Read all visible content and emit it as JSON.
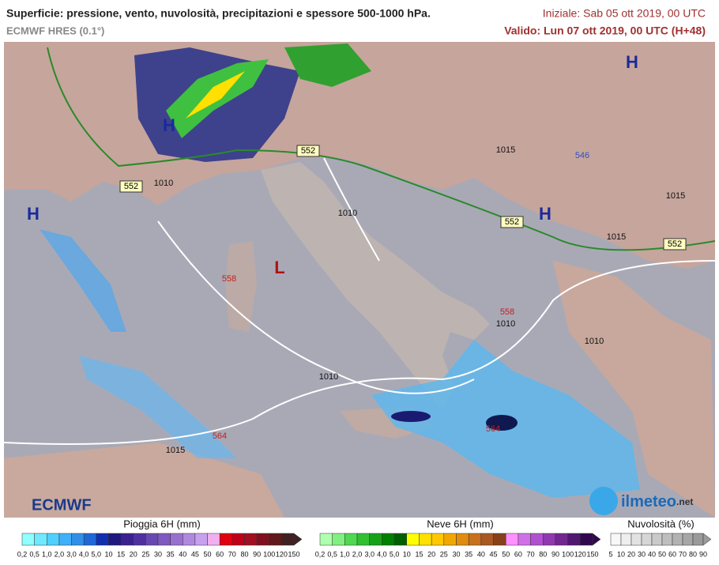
{
  "header": {
    "title": "Superficie: pressione, vento, nuvolosità, precipitazioni e spessore 500-1000 hPa.",
    "model": "ECMWF HRES (0.1°)",
    "init": "Iniziale: Sab 05 ott 2019, 00 UTC",
    "valid": "Valido: Lun 07 ott 2019, 00 UTC (H+48)"
  },
  "map": {
    "labels": [
      "H",
      "H",
      "H",
      "H",
      "L",
      "552",
      "552",
      "552",
      "552",
      "1010",
      "1010",
      "1010",
      "1010",
      "1010",
      "1015",
      "1015",
      "1015",
      "1015",
      "558",
      "558",
      "564",
      "564",
      "546"
    ]
  },
  "logos": {
    "left": "ECMWF",
    "right": "ilmeteo",
    "right_suffix": ".net"
  },
  "legends": [
    {
      "title": "Pioggia 6H (mm)",
      "labels": [
        "0,2",
        "0,5",
        "1,0",
        "2,0",
        "3,0",
        "4,0",
        "5,0",
        "10",
        "15",
        "20",
        "25",
        "30",
        "35",
        "40",
        "45",
        "50",
        "60",
        "70",
        "80",
        "90",
        "100",
        "120",
        "150"
      ],
      "colors": [
        "#90ffff",
        "#70e8ff",
        "#50d0ff",
        "#40b0f8",
        "#3090e8",
        "#2068d8",
        "#1030b0",
        "#201880",
        "#3a2090",
        "#5030a0",
        "#6848b0",
        "#8058c0",
        "#9870d0",
        "#b088e0",
        "#c8a0f0",
        "#f0b0f0",
        "#e00010",
        "#c00018",
        "#a01020",
        "#801020",
        "#601818",
        "#402020"
      ]
    },
    {
      "title": "Neve 6H (mm)",
      "labels": [
        "0,2",
        "0,5",
        "1,0",
        "2,0",
        "3,0",
        "4,0",
        "5,0",
        "10",
        "15",
        "20",
        "25",
        "30",
        "35",
        "40",
        "45",
        "50",
        "60",
        "70",
        "80",
        "90",
        "100",
        "120",
        "150"
      ],
      "colors": [
        "#b0ffb0",
        "#80f080",
        "#50d850",
        "#30c030",
        "#18a018",
        "#008000",
        "#006000",
        "#ffff00",
        "#ffe000",
        "#ffc800",
        "#f0a800",
        "#e08c10",
        "#c87020",
        "#a85820",
        "#884018",
        "#ff90ff",
        "#d070e8",
        "#b050d0",
        "#9038b0",
        "#702890",
        "#501870",
        "#300850"
      ]
    },
    {
      "title": "Nuvolosità (%)",
      "labels": [
        "5",
        "10",
        "20",
        "30",
        "40",
        "50",
        "60",
        "70",
        "80",
        "90"
      ],
      "colors": [
        "#f8f8f8",
        "#eeeeee",
        "#e2e2e2",
        "#d6d6d6",
        "#cacaca",
        "#bebebe",
        "#b2b2b2",
        "#a6a6a6",
        "#9a9a9a"
      ]
    }
  ]
}
